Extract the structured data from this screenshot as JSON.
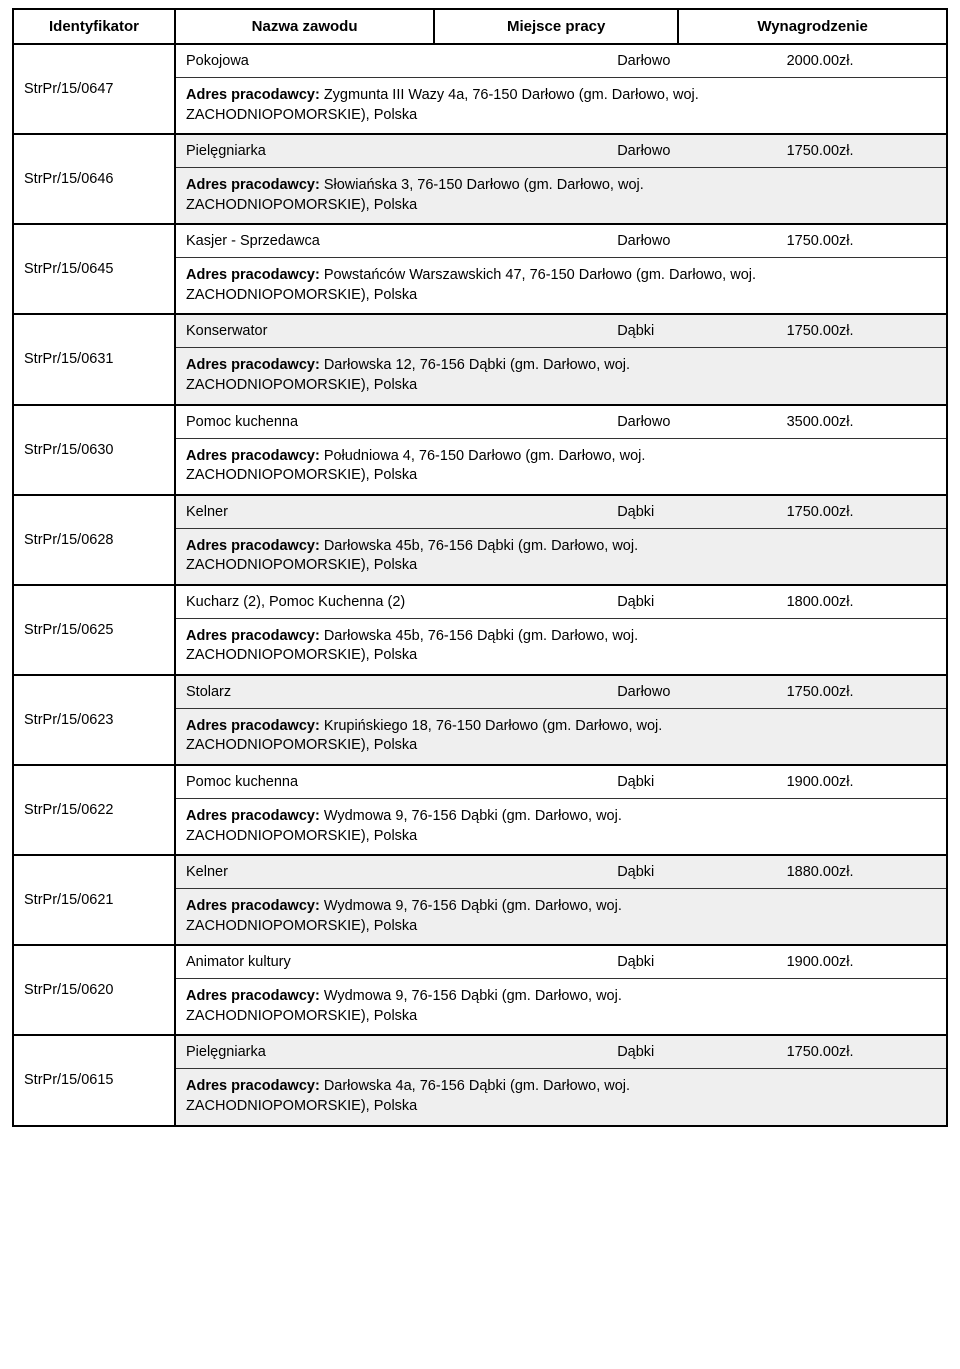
{
  "headers": {
    "id": "Identyfikator",
    "job": "Nazwa zawodu",
    "place": "Miejsce pracy",
    "salary": "Wynagrodzenie"
  },
  "labels": {
    "employer": "Adres pracodawcy:"
  },
  "rows": [
    {
      "id": "StrPr/15/0647",
      "shade": false,
      "job": "Pokojowa",
      "place": "Darłowo",
      "salary": "2000.00zł.",
      "employer": "Zygmunta III Wazy 4a, 76-150 Darłowo (gm. Darłowo, woj.\nZACHODNIOPOMORSKIE), Polska"
    },
    {
      "id": "StrPr/15/0646",
      "shade": true,
      "job": "Pielęgniarka",
      "place": "Darłowo",
      "salary": "1750.00zł.",
      "employer": "Słowiańska 3, 76-150 Darłowo (gm. Darłowo, woj.\nZACHODNIOPOMORSKIE), Polska"
    },
    {
      "id": "StrPr/15/0645",
      "shade": false,
      "job": "Kasjer - Sprzedawca",
      "place": "Darłowo",
      "salary": "1750.00zł.",
      "employer": "Powstańców Warszawskich 47, 76-150 Darłowo (gm. Darłowo, woj.\nZACHODNIOPOMORSKIE), Polska"
    },
    {
      "id": "StrPr/15/0631",
      "shade": true,
      "job": "Konserwator",
      "place": "Dąbki",
      "salary": "1750.00zł.",
      "employer": "Darłowska 12, 76-156 Dąbki (gm. Darłowo, woj.\nZACHODNIOPOMORSKIE), Polska"
    },
    {
      "id": "StrPr/15/0630",
      "shade": false,
      "job": "Pomoc kuchenna",
      "place": "Darłowo",
      "salary": "3500.00zł.",
      "employer": "Południowa 4, 76-150 Darłowo (gm. Darłowo, woj.\nZACHODNIOPOMORSKIE), Polska"
    },
    {
      "id": "StrPr/15/0628",
      "shade": true,
      "job": "Kelner",
      "place": "Dąbki",
      "salary": "1750.00zł.",
      "employer": "Darłowska 45b, 76-156 Dąbki (gm. Darłowo, woj.\nZACHODNIOPOMORSKIE), Polska"
    },
    {
      "id": "StrPr/15/0625",
      "shade": false,
      "job": "Kucharz (2), Pomoc Kuchenna (2)",
      "place": "Dąbki",
      "salary": "1800.00zł.",
      "employer": "Darłowska 45b, 76-156 Dąbki (gm. Darłowo, woj.\nZACHODNIOPOMORSKIE), Polska"
    },
    {
      "id": "StrPr/15/0623",
      "shade": true,
      "job": "Stolarz",
      "place": "Darłowo",
      "salary": "1750.00zł.",
      "employer": "Krupińskiego 18, 76-150 Darłowo (gm. Darłowo, woj.\nZACHODNIOPOMORSKIE), Polska"
    },
    {
      "id": "StrPr/15/0622",
      "shade": false,
      "job": "Pomoc kuchenna",
      "place": "Dąbki",
      "salary": "1900.00zł.",
      "employer": "Wydmowa 9, 76-156 Dąbki (gm. Darłowo, woj.\nZACHODNIOPOMORSKIE), Polska"
    },
    {
      "id": "StrPr/15/0621",
      "shade": true,
      "job": "Kelner",
      "place": "Dąbki",
      "salary": "1880.00zł.",
      "employer": "Wydmowa 9, 76-156 Dąbki (gm. Darłowo, woj.\nZACHODNIOPOMORSKIE), Polska"
    },
    {
      "id": "StrPr/15/0620",
      "shade": false,
      "job": "Animator kultury",
      "place": "Dąbki",
      "salary": "1900.00zł.",
      "employer": "Wydmowa 9, 76-156 Dąbki (gm. Darłowo, woj.\nZACHODNIOPOMORSKIE), Polska"
    },
    {
      "id": "StrPr/15/0615",
      "shade": true,
      "job": "Pielęgniarka",
      "place": "Dąbki",
      "salary": "1750.00zł.",
      "employer": "Darłowska 4a, 76-156 Dąbki (gm. Darłowo, woj.\nZACHODNIOPOMORSKIE), Polska"
    }
  ]
}
